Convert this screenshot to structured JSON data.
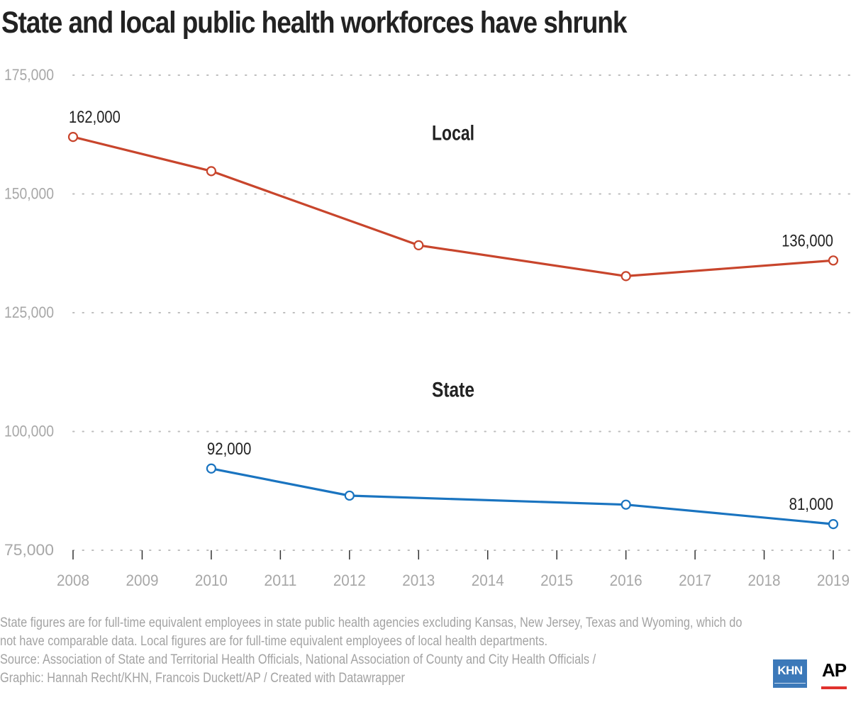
{
  "title": "State and local public health workforces have shrunk",
  "notes": {
    "line1": "State figures are for full-time equivalent employees in state public health agencies excluding Kansas, New Jersey, Texas and Wyoming, which do",
    "line2": "not have comparable data. Local figures are for full-time equivalent employees of local health departments.",
    "line3": "Source: Association of State and Territorial Health Officials, National Association of County and City Health Officials /",
    "line4": "Graphic: Hannah Recht/KHN, Francois Duckett/AP / Created with Datawrapper"
  },
  "logos": {
    "khn": "KHN",
    "ap": "AP"
  },
  "colors": {
    "local": "#c8452c",
    "state": "#1a74c0",
    "grid": "#bdbdbd",
    "axis_text": "#a7a7a7",
    "label_text": "#222222"
  },
  "chart_data": {
    "type": "line",
    "title": "State and local public health workforces have shrunk",
    "x_ticks": [
      "2008",
      "2009",
      "2010",
      "2011",
      "2012",
      "2013",
      "2014",
      "2015",
      "2016",
      "2017",
      "2018",
      "2019"
    ],
    "xlim": [
      2008,
      2019
    ],
    "ylim": [
      75000,
      175000
    ],
    "y_ticks": [
      {
        "value": 75000,
        "label": "75,000"
      },
      {
        "value": 100000,
        "label": "100,000"
      },
      {
        "value": 125000,
        "label": "125,000"
      },
      {
        "value": 150000,
        "label": "150,000"
      },
      {
        "value": 175000,
        "label": "175,000"
      }
    ],
    "grid": true,
    "series": [
      {
        "name": "Local",
        "color": "#c8452c",
        "points": [
          {
            "x": 2008,
            "y": 162000
          },
          {
            "x": 2010,
            "y": 154800
          },
          {
            "x": 2013,
            "y": 139200
          },
          {
            "x": 2016,
            "y": 132700
          },
          {
            "x": 2019,
            "y": 136000
          }
        ]
      },
      {
        "name": "State",
        "color": "#1a74c0",
        "points": [
          {
            "x": 2010,
            "y": 92200
          },
          {
            "x": 2012,
            "y": 86500
          },
          {
            "x": 2016,
            "y": 84600
          },
          {
            "x": 2019,
            "y": 80500
          }
        ]
      }
    ],
    "annotations": [
      {
        "text": "162,000",
        "x": 2008,
        "y": 162000,
        "anchor": "above-start"
      },
      {
        "text": "136,000",
        "x": 2019,
        "y": 136000,
        "anchor": "above-end"
      },
      {
        "text": "92,000",
        "x": 2010,
        "y": 92200,
        "anchor": "above-start"
      },
      {
        "text": "81,000",
        "x": 2019,
        "y": 80500,
        "anchor": "above-end"
      }
    ],
    "series_labels": [
      {
        "text": "Local",
        "x": 2013.5,
        "y": 164000
      },
      {
        "text": "State",
        "x": 2013.5,
        "y": 110000
      }
    ]
  }
}
